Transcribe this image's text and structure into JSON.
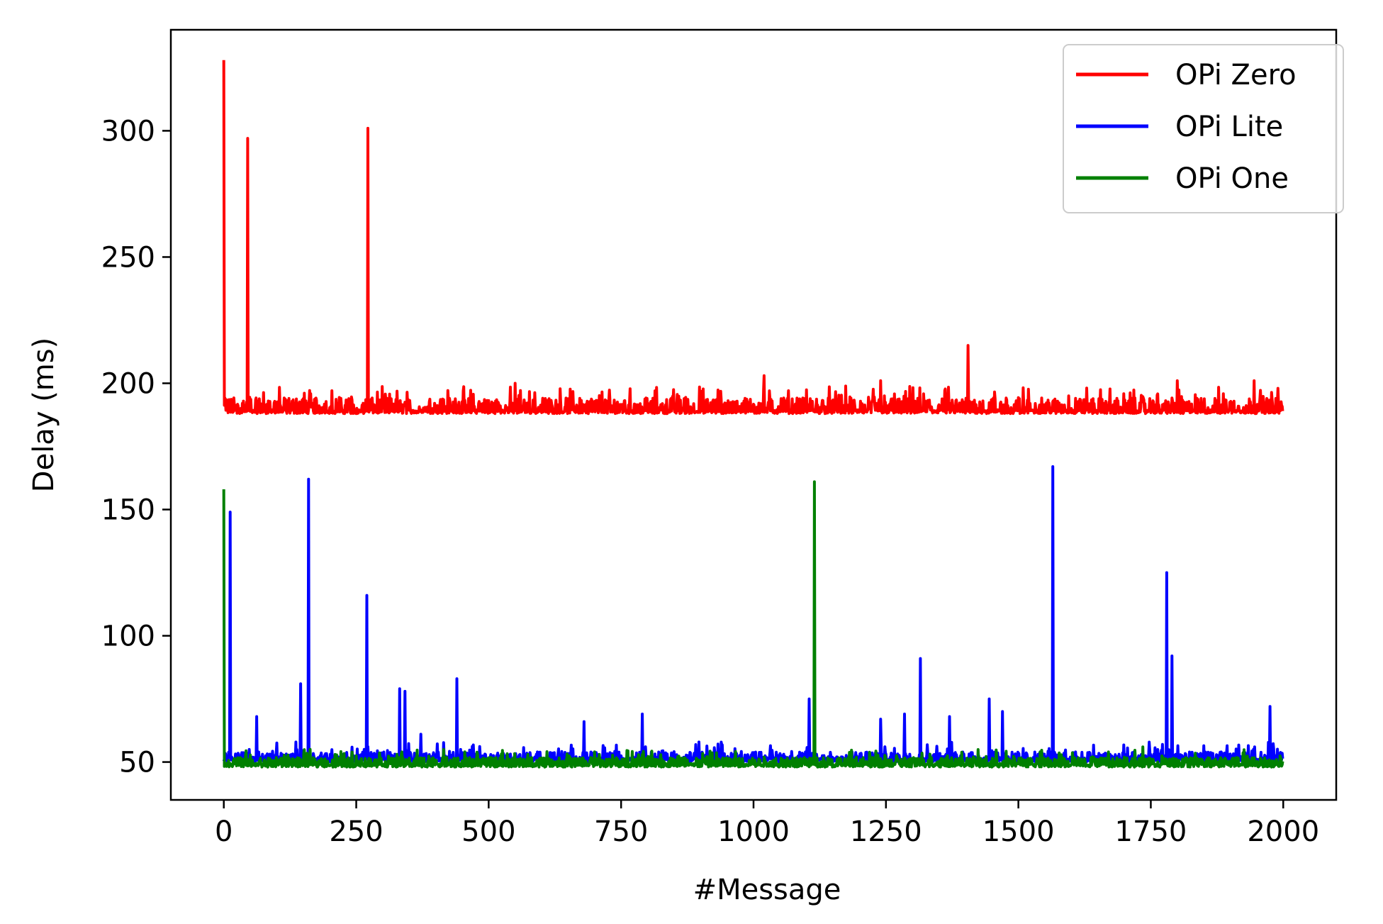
{
  "chart_data": {
    "type": "line",
    "title": "",
    "xlabel": "#Message",
    "ylabel": "Delay (ms)",
    "xlim": [
      -100,
      2100
    ],
    "ylim": [
      35,
      340
    ],
    "xticks": [
      0,
      250,
      500,
      750,
      1000,
      1250,
      1500,
      1750,
      2000
    ],
    "xtick_labels": [
      "0",
      "250",
      "500",
      "750",
      "1000",
      "1250",
      "1500",
      "1750",
      "2000"
    ],
    "yticks": [
      50,
      100,
      150,
      200,
      250,
      300
    ],
    "ytick_labels": [
      "50",
      "100",
      "150",
      "200",
      "250",
      "300"
    ],
    "grid": false,
    "legend_position": "top-right",
    "n_points": 2000,
    "series": [
      {
        "name": "OPi Zero",
        "color": "#ff0000",
        "baseline": 190,
        "noise": [
          188,
          197
        ],
        "spikes": [
          [
            0,
            328
          ],
          [
            45,
            297
          ],
          [
            272,
            301
          ],
          [
            550,
            200
          ],
          [
            1020,
            203
          ],
          [
            1240,
            201
          ],
          [
            1405,
            215
          ],
          [
            1945,
            201
          ],
          [
            1800,
            201
          ],
          [
            1990,
            198
          ]
        ]
      },
      {
        "name": "OPi Lite",
        "color": "#0000ff",
        "baseline": 51,
        "noise": [
          50,
          56
        ],
        "spikes": [
          [
            12,
            149
          ],
          [
            62,
            68
          ],
          [
            145,
            81
          ],
          [
            160,
            162
          ],
          [
            270,
            116
          ],
          [
            332,
            79
          ],
          [
            342,
            78
          ],
          [
            372,
            61
          ],
          [
            440,
            83
          ],
          [
            680,
            66
          ],
          [
            790,
            69
          ],
          [
            1105,
            75
          ],
          [
            1240,
            67
          ],
          [
            1285,
            69
          ],
          [
            1315,
            91
          ],
          [
            1370,
            68
          ],
          [
            1445,
            75
          ],
          [
            1470,
            70
          ],
          [
            1565,
            167
          ],
          [
            1780,
            125
          ],
          [
            1790,
            92
          ],
          [
            1975,
            72
          ]
        ]
      },
      {
        "name": "OPi One",
        "color": "#008000",
        "baseline": 50,
        "noise": [
          48,
          53
        ],
        "spikes": [
          [
            0,
            158
          ],
          [
            1115,
            161
          ],
          [
            1735,
            56
          ],
          [
            700,
            54
          ],
          [
            210,
            53
          ]
        ]
      }
    ]
  }
}
